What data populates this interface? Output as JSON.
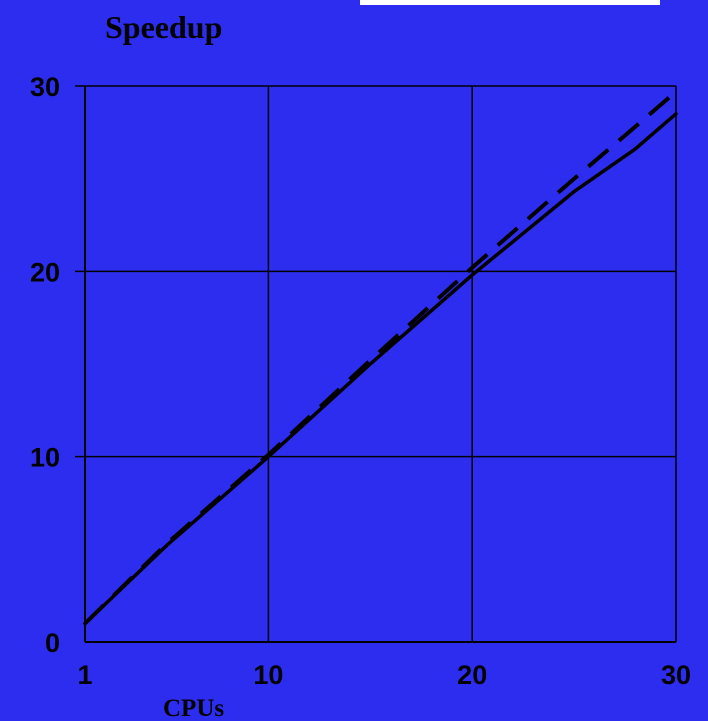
{
  "chart_data": {
    "type": "line",
    "title": "Speedup",
    "xlabel": "CPUs",
    "ylabel": "",
    "xlim": [
      1,
      30
    ],
    "ylim": [
      0,
      30
    ],
    "x_ticks": [
      1,
      10,
      20,
      30
    ],
    "y_ticks": [
      0,
      10,
      20,
      30
    ],
    "x_tick_labels": [
      "1",
      "10",
      "20",
      "30"
    ],
    "y_tick_labels": [
      "0",
      "10",
      "20",
      "30"
    ],
    "grid": true,
    "legend": "none",
    "series": [
      {
        "style": "solid",
        "x": [
          1,
          5,
          10,
          15,
          20,
          25,
          28,
          30
        ],
        "y": [
          1,
          5.2,
          10,
          15,
          19.8,
          24.3,
          26.6,
          28.5
        ]
      },
      {
        "style": "dashed",
        "x": [
          1,
          5,
          10,
          15,
          20,
          25,
          28,
          30
        ],
        "y": [
          1,
          5.3,
          10.1,
          15.2,
          20.2,
          25,
          27.8,
          29.7
        ]
      }
    ]
  },
  "colors": {
    "background": "#2d2df0",
    "ink": "#000000",
    "top_bar": "#ffffff"
  }
}
